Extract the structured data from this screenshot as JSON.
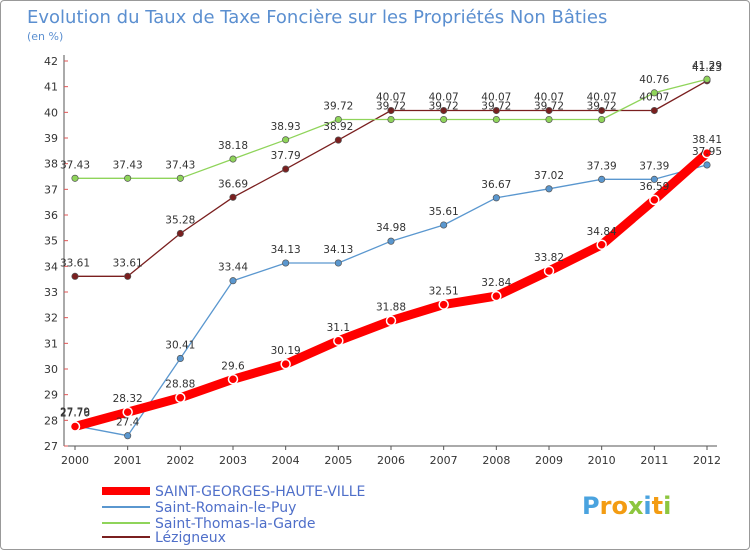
{
  "chart_data": {
    "type": "line",
    "title": "Evolution du Taux de Taxe Foncière sur les Propriétés Non Bâties",
    "ylabel": "(en %)",
    "xlabel": "",
    "ylim": [
      27,
      42
    ],
    "y_ticks": [
      27,
      28,
      29,
      30,
      31,
      32,
      33,
      34,
      35,
      36,
      37,
      38,
      39,
      40,
      41,
      42
    ],
    "x": [
      "2000",
      "2001",
      "2002",
      "2003",
      "2004",
      "2005",
      "2006",
      "2007",
      "2008",
      "2009",
      "2010",
      "2011",
      "2012"
    ],
    "grid": false,
    "series": [
      {
        "name": "Lézigneux",
        "color": "#7a1f1f",
        "values": [
          33.61,
          33.61,
          35.28,
          36.69,
          37.79,
          38.92,
          40.07,
          40.07,
          40.07,
          40.07,
          40.07,
          40.07,
          41.23
        ],
        "labels": [
          "33.61",
          "33.61",
          "35.28",
          "36.69",
          "37.79",
          "38.92",
          "40.07",
          "40.07",
          "40.07",
          "40.07",
          "40.07",
          "40.07",
          "41.23"
        ]
      },
      {
        "name": "Saint-Thomas-la-Garde",
        "color": "#8fd45a",
        "values": [
          37.43,
          37.43,
          37.43,
          38.18,
          38.93,
          39.72,
          39.72,
          39.72,
          39.72,
          39.72,
          39.72,
          40.76,
          41.29
        ],
        "labels": [
          "37.43",
          "37.43",
          "37.43",
          "38.18",
          "38.93",
          "39.72",
          "39.72",
          "39.72",
          "39.72",
          "39.72",
          "39.72",
          "40.76",
          "41.29"
        ]
      },
      {
        "name": "Saint-Romain-le-Puy",
        "color": "#5a97cf",
        "values": [
          27.79,
          27.4,
          30.41,
          33.44,
          34.13,
          34.13,
          34.98,
          35.61,
          36.67,
          37.02,
          37.39,
          37.39,
          37.95
        ],
        "labels": [
          "27.79",
          "27.4",
          "30.41",
          "33.44",
          "34.13",
          "34.13",
          "34.98",
          "35.61",
          "36.67",
          "37.02",
          "37.39",
          "37.39",
          "37.95"
        ]
      },
      {
        "name": "SAINT-GEORGES-HAUTE-VILLE",
        "color": "#ff0000",
        "values": [
          27.76,
          28.32,
          28.88,
          29.6,
          30.19,
          31.1,
          31.88,
          32.51,
          32.84,
          33.82,
          34.84,
          36.59,
          38.41
        ],
        "labels": [
          "27.76",
          "28.32",
          "28.88",
          "29.6",
          "30.19",
          "31.1",
          "31.88",
          "32.51",
          "32.84",
          "33.82",
          "34.84",
          "36.59",
          "38.41"
        ]
      }
    ],
    "legend": {
      "placement": "bottom-left",
      "items": [
        {
          "label": "SAINT-GEORGES-HAUTE-VILLE",
          "color": "#ff0000"
        },
        {
          "label": "Saint-Romain-le-Puy",
          "color": "#5a97cf"
        },
        {
          "label": "Saint-Thomas-la-Garde",
          "color": "#8fd45a"
        },
        {
          "label": "Lézigneux",
          "color": "#7a1f1f"
        }
      ]
    }
  },
  "logo": {
    "letters": [
      {
        "char": "P",
        "color": "#4aa3df"
      },
      {
        "char": "r",
        "color": "#f39c12"
      },
      {
        "char": "o",
        "color": "#f39c12"
      },
      {
        "char": "x",
        "color": "#8dc63f"
      },
      {
        "char": "i",
        "color": "#4aa3df"
      },
      {
        "char": "t",
        "color": "#f39c12"
      },
      {
        "char": "i",
        "color": "#8dc63f"
      }
    ]
  }
}
